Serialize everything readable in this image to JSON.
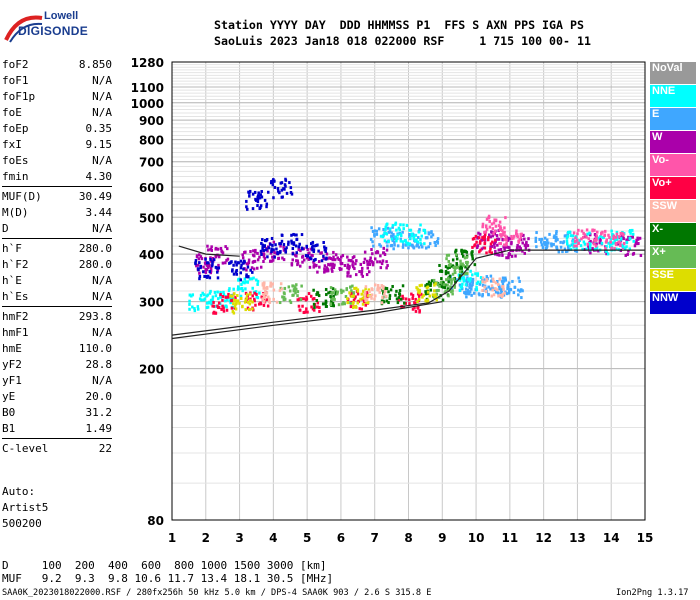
{
  "brand": {
    "line1": "Lowell",
    "line2": "DIGISONDE"
  },
  "header": {
    "row1": "Station YYYY DAY  DDD HHMMSS P1  FFS S AXN PPS IGA PS",
    "row2": "SaoLuis 2023 Jan18 018 022000 RSF     1 715 100 00- 11"
  },
  "params": [
    {
      "k": "foF2",
      "v": "8.850"
    },
    {
      "k": "foF1",
      "v": "N/A"
    },
    {
      "k": "foF1p",
      "v": "N/A"
    },
    {
      "k": "foE",
      "v": "N/A"
    },
    {
      "k": "foEp",
      "v": "0.35"
    },
    {
      "k": "fxI",
      "v": "9.15"
    },
    {
      "k": "foEs",
      "v": "N/A"
    },
    {
      "k": "fmin",
      "v": "4.30"
    },
    {
      "k": "MUF(D)",
      "v": "30.49",
      "sep": true
    },
    {
      "k": "M(D)",
      "v": "3.44"
    },
    {
      "k": "D",
      "v": "N/A"
    },
    {
      "k": "h`F",
      "v": "280.0",
      "sep": true
    },
    {
      "k": "h`F2",
      "v": "280.0"
    },
    {
      "k": "h`E",
      "v": "N/A"
    },
    {
      "k": "h`Es",
      "v": "N/A"
    },
    {
      "k": "hmF2",
      "v": "293.8",
      "sep": true
    },
    {
      "k": "hmF1",
      "v": "N/A"
    },
    {
      "k": "hmE",
      "v": "110.0"
    },
    {
      "k": "yF2",
      "v": "28.8"
    },
    {
      "k": "yF1",
      "v": "N/A"
    },
    {
      "k": "yE",
      "v": "20.0"
    },
    {
      "k": "B0",
      "v": "31.2"
    },
    {
      "k": "B1",
      "v": "1.49"
    },
    {
      "k": "C-level",
      "v": "22",
      "sep": true
    }
  ],
  "scaler": {
    "line1": "Auto:",
    "line2": "Artist5",
    "line3": "500200"
  },
  "legend": [
    {
      "label": "NoVal",
      "color": "#999999"
    },
    {
      "label": "NNE",
      "color": "#00ffff"
    },
    {
      "label": "E",
      "color": "#3fa7ff"
    },
    {
      "label": "W",
      "color": "#aa00aa"
    },
    {
      "label": "Vo-",
      "color": "#ff55aa"
    },
    {
      "label": "Vo+",
      "color": "#ff0044"
    },
    {
      "label": "SSW",
      "color": "#ffb6a8"
    },
    {
      "label": "X-",
      "color": "#007700"
    },
    {
      "label": "X+",
      "color": "#66bb55"
    },
    {
      "label": "SSE",
      "color": "#dddd00"
    },
    {
      "label": "NNW",
      "color": "#0000cc"
    }
  ],
  "footer": {
    "d_row": "D     100  200  400  600  800 1000 1500 3000 [km]",
    "muf_row": "MUF   9.2  9.3  9.8 10.6 11.7 13.4 18.1 30.5 [MHz]",
    "file": "SAA0K_2023018022000.RSF / 280fx256h 50 kHz 5.0 km / DPS-4 SAA0K 903 / 2.6 S 315.8 E",
    "version": "Ion2Png 1.3.17"
  },
  "chart_data": {
    "type": "scatter",
    "xlabel": "",
    "ylabel": "",
    "xlim": [
      1,
      15
    ],
    "ylim": [
      80,
      1280
    ],
    "y_scale": "log",
    "x_ticks": [
      1,
      2,
      3,
      4,
      5,
      6,
      7,
      8,
      9,
      10,
      11,
      12,
      13,
      14,
      15
    ],
    "y_ticks": [
      80,
      200,
      300,
      400,
      500,
      600,
      700,
      800,
      900,
      1000,
      1100,
      1280
    ],
    "grid": true,
    "series": [
      {
        "name": "W",
        "color": "#aa00aa",
        "points": [
          [
            2.0,
            380
          ],
          [
            2.3,
            400
          ],
          [
            3.4,
            390
          ],
          [
            4.0,
            410
          ],
          [
            4.8,
            395
          ],
          [
            5.5,
            385
          ],
          [
            6.0,
            380
          ],
          [
            6.5,
            375
          ],
          [
            7.0,
            395
          ],
          [
            10.3,
            440
          ],
          [
            10.8,
            420
          ],
          [
            11.2,
            430
          ],
          [
            13.5,
            430
          ],
          [
            14.5,
            425
          ]
        ]
      },
      {
        "name": "E",
        "color": "#3fa7ff",
        "points": [
          [
            7.2,
            450
          ],
          [
            7.8,
            440
          ],
          [
            8.5,
            445
          ],
          [
            9.5,
            340
          ],
          [
            10.0,
            330
          ],
          [
            10.5,
            335
          ],
          [
            11.0,
            330
          ],
          [
            12.0,
            440
          ],
          [
            12.6,
            435
          ]
        ]
      },
      {
        "name": "NNE",
        "color": "#00ffff",
        "points": [
          [
            1.8,
            305
          ],
          [
            2.5,
            310
          ],
          [
            3.2,
            330
          ],
          [
            7.5,
            460
          ],
          [
            8.2,
            455
          ],
          [
            9.8,
            345
          ],
          [
            13.0,
            440
          ],
          [
            13.8,
            430
          ],
          [
            14.3,
            440
          ]
        ]
      },
      {
        "name": "NNW",
        "color": "#0000cc",
        "points": [
          [
            2.0,
            370
          ],
          [
            3.0,
            365
          ],
          [
            3.9,
            420
          ],
          [
            4.5,
            430
          ],
          [
            5.2,
            410
          ],
          [
            3.5,
            560
          ],
          [
            4.2,
            600
          ]
        ]
      },
      {
        "name": "Vo+",
        "color": "#ff0044",
        "points": [
          [
            2.5,
            300
          ],
          [
            3.5,
            305
          ],
          [
            5.0,
            300
          ],
          [
            6.5,
            305
          ],
          [
            8.0,
            300
          ],
          [
            10.2,
            430
          ]
        ]
      },
      {
        "name": "Vo-",
        "color": "#ff55aa",
        "points": [
          [
            10.5,
            480
          ],
          [
            11.0,
            450
          ],
          [
            13.2,
            450
          ],
          [
            14.0,
            440
          ]
        ]
      },
      {
        "name": "X-",
        "color": "#007700",
        "points": [
          [
            5.5,
            310
          ],
          [
            7.5,
            315
          ],
          [
            8.8,
            325
          ],
          [
            9.2,
            360
          ],
          [
            9.6,
            390
          ]
        ]
      },
      {
        "name": "X+",
        "color": "#66bb55",
        "points": [
          [
            4.5,
            320
          ],
          [
            6.0,
            315
          ],
          [
            9.0,
            330
          ],
          [
            9.4,
            380
          ]
        ]
      },
      {
        "name": "SSE",
        "color": "#dddd00",
        "points": [
          [
            3.0,
            300
          ],
          [
            6.5,
            310
          ],
          [
            8.5,
            320
          ]
        ]
      },
      {
        "name": "SSW",
        "color": "#ffb6a8",
        "points": [
          [
            4.0,
            320
          ],
          [
            7.0,
            318
          ],
          [
            10.5,
            330
          ]
        ]
      }
    ],
    "traces": [
      {
        "points": [
          [
            1.0,
            240
          ],
          [
            4.0,
            260
          ],
          [
            7.0,
            280
          ],
          [
            9.0,
            300
          ]
        ]
      },
      {
        "points": [
          [
            1.0,
            245
          ],
          [
            4.0,
            265
          ],
          [
            7.0,
            285
          ],
          [
            8.6,
            298
          ],
          [
            9.2,
            320
          ],
          [
            10.0,
            390
          ],
          [
            11.0,
            410
          ],
          [
            12.0,
            410
          ],
          [
            13.0,
            410
          ],
          [
            14.0,
            410
          ],
          [
            15.0,
            410
          ]
        ]
      },
      {
        "points": [
          [
            1.2,
            420
          ],
          [
            2.0,
            400
          ],
          [
            3.0,
            395
          ]
        ]
      }
    ]
  }
}
